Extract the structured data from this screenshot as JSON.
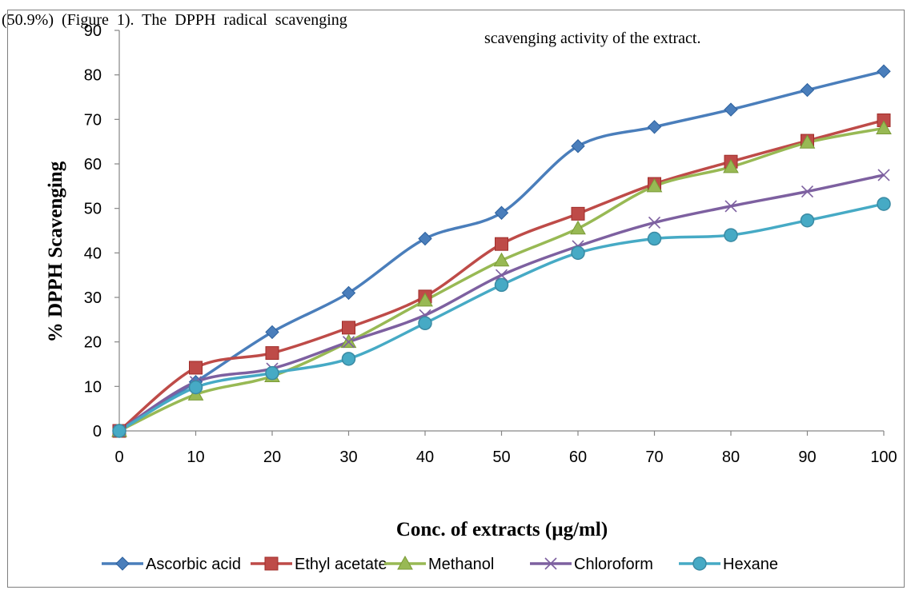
{
  "page_text": {
    "left": "(50.9%)  (Figure  1).  The  DPPH  radical  scavenging",
    "right": "scavenging activity of the extract."
  },
  "chart_data": {
    "type": "line",
    "title": "",
    "xlabel": "Conc. of extracts (µg/ml)",
    "ylabel": "% DPPH Scavenging",
    "x": [
      0,
      10,
      20,
      30,
      40,
      50,
      60,
      70,
      80,
      90,
      100
    ],
    "ylim": [
      0,
      90
    ],
    "yticks": [
      0,
      10,
      20,
      30,
      40,
      50,
      60,
      70,
      80,
      90
    ],
    "grid": false,
    "legend_position": "bottom",
    "series": [
      {
        "name": "Ascorbic acid",
        "color": "#4a7ebb",
        "marker": "diamond",
        "values": [
          0,
          11,
          22.2,
          31,
          43.2,
          49,
          64,
          68.3,
          72.2,
          76.6,
          80.8
        ]
      },
      {
        "name": "Ethyl acetate",
        "color": "#be4b48",
        "marker": "square",
        "values": [
          0,
          14.2,
          17.5,
          23.2,
          30.2,
          42,
          48.8,
          55.5,
          60.5,
          65.2,
          69.8
        ]
      },
      {
        "name": "Methanol",
        "color": "#98b954",
        "marker": "triangle",
        "values": [
          0,
          8.2,
          12.3,
          20,
          29.3,
          38.3,
          45.5,
          55,
          59.3,
          64.8,
          68
        ]
      },
      {
        "name": "Chloroform",
        "color": "#7d60a0",
        "marker": "x",
        "values": [
          0,
          11,
          14,
          20,
          26,
          35,
          41.5,
          46.8,
          50.5,
          53.8,
          57.5
        ]
      },
      {
        "name": "Hexane",
        "color": "#46aac5",
        "marker": "circle",
        "values": [
          0,
          9.8,
          13,
          16.2,
          24.2,
          32.8,
          40,
          43.2,
          44,
          47.3,
          51
        ]
      }
    ]
  }
}
